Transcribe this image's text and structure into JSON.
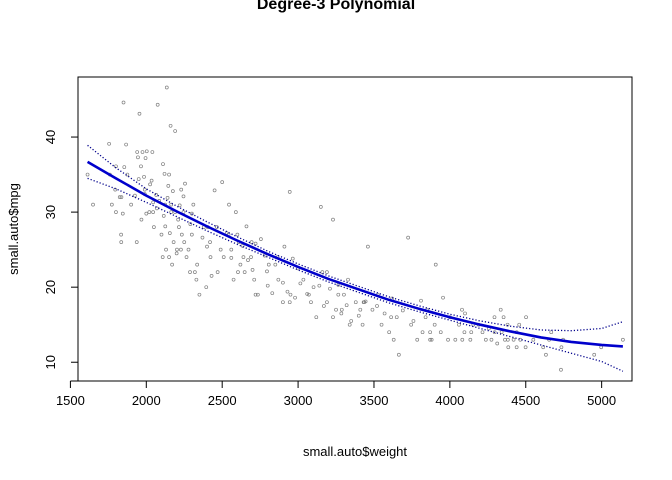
{
  "chart_data": {
    "type": "scatter",
    "title": "Degree-3 Polynomial",
    "xlabel": "small.auto$weight",
    "ylabel": "small.auto$mpg",
    "xlim": [
      1550,
      5200
    ],
    "ylim": [
      7.5,
      48
    ],
    "x_ticks": [
      1500,
      2000,
      2500,
      3000,
      3500,
      4000,
      4500,
      5000
    ],
    "y_ticks": [
      10,
      20,
      30,
      40
    ],
    "grid": false,
    "legend": "none",
    "colors": {
      "points": "#808080",
      "fit": "#0000cc",
      "band": "#00008b"
    },
    "fit": {
      "name": "",
      "x": [
        1613,
        1800,
        2000,
        2200,
        2400,
        2600,
        2800,
        3000,
        3200,
        3400,
        3600,
        3800,
        4000,
        4200,
        4400,
        4600,
        4800,
        5000,
        5140
      ],
      "y": [
        36.7,
        34.5,
        32.2,
        30.1,
        28.1,
        26.2,
        24.4,
        22.7,
        21.1,
        19.7,
        18.3,
        17.1,
        16.0,
        15.0,
        14.1,
        13.3,
        12.7,
        12.3,
        12.1
      ]
    },
    "upper_band": {
      "x": [
        1613,
        1800,
        2000,
        2200,
        2400,
        2600,
        2800,
        3000,
        3200,
        3400,
        3600,
        3800,
        4000,
        4200,
        4400,
        4600,
        4800,
        5000,
        5140
      ],
      "y": [
        38.9,
        35.9,
        33.1,
        30.8,
        28.7,
        26.7,
        24.8,
        23.1,
        21.5,
        20.1,
        18.7,
        17.5,
        16.4,
        15.5,
        14.8,
        14.3,
        14.2,
        14.5,
        15.4
      ]
    },
    "lower_band": {
      "x": [
        1613,
        1800,
        2000,
        2200,
        2400,
        2600,
        2800,
        3000,
        3200,
        3400,
        3600,
        3800,
        4000,
        4200,
        4400,
        4600,
        4800,
        5000,
        5140
      ],
      "y": [
        34.5,
        33.1,
        31.3,
        29.4,
        27.5,
        25.7,
        24.0,
        22.3,
        20.7,
        19.3,
        17.9,
        16.7,
        15.6,
        14.5,
        13.4,
        12.3,
        11.2,
        10.1,
        8.8
      ]
    },
    "points": [
      [
        1613,
        35
      ],
      [
        1649,
        31
      ],
      [
        1755,
        39.1
      ],
      [
        1760,
        35
      ],
      [
        1773,
        31
      ],
      [
        1795,
        33
      ],
      [
        1800,
        36.1
      ],
      [
        1825,
        32
      ],
      [
        1834,
        27
      ],
      [
        1835,
        26
      ],
      [
        1836,
        32
      ],
      [
        1845,
        29.8
      ],
      [
        1850,
        44.6
      ],
      [
        1855,
        36
      ],
      [
        1867,
        39
      ],
      [
        1875,
        35
      ],
      [
        1900,
        31
      ],
      [
        1925,
        32.2
      ],
      [
        1937,
        26
      ],
      [
        1940,
        38
      ],
      [
        1945,
        37.3
      ],
      [
        1950,
        34.4
      ],
      [
        1955,
        43.1
      ],
      [
        1965,
        36.1
      ],
      [
        1968,
        29
      ],
      [
        1975,
        38
      ],
      [
        1985,
        34.7
      ],
      [
        1990,
        32.4
      ],
      [
        1995,
        37.2
      ],
      [
        2000,
        29.8
      ],
      [
        2003,
        38.1
      ],
      [
        2020,
        30
      ],
      [
        2025,
        33.7
      ],
      [
        2035,
        34.2
      ],
      [
        2045,
        31.3
      ],
      [
        2050,
        28
      ],
      [
        2065,
        32.3
      ],
      [
        2070,
        30.5
      ],
      [
        2075,
        44.3
      ],
      [
        2085,
        31.5
      ],
      [
        2100,
        27
      ],
      [
        2108,
        24
      ],
      [
        2110,
        36.4
      ],
      [
        2115,
        29.5
      ],
      [
        2120,
        35.1
      ],
      [
        2125,
        28.1
      ],
      [
        2130,
        25
      ],
      [
        2135,
        46.6
      ],
      [
        2140,
        31.9
      ],
      [
        2145,
        33.5
      ],
      [
        2150,
        24
      ],
      [
        2155,
        27.2
      ],
      [
        2160,
        41.5
      ],
      [
        2164,
        31
      ],
      [
        2170,
        23
      ],
      [
        2175,
        32.8
      ],
      [
        2180,
        26
      ],
      [
        2190,
        40.8
      ],
      [
        2200,
        24.5
      ],
      [
        2210,
        29
      ],
      [
        2215,
        28
      ],
      [
        2220,
        30.9
      ],
      [
        2228,
        25
      ],
      [
        2230,
        33
      ],
      [
        2234,
        27
      ],
      [
        2245,
        32.1
      ],
      [
        2250,
        26
      ],
      [
        2255,
        33.8
      ],
      [
        2265,
        24
      ],
      [
        2278,
        25
      ],
      [
        2290,
        28.4
      ],
      [
        2300,
        29.8
      ],
      [
        2310,
        31
      ],
      [
        2320,
        22
      ],
      [
        2330,
        21
      ],
      [
        2335,
        23
      ],
      [
        2350,
        19
      ],
      [
        2370,
        26.6
      ],
      [
        2379,
        28
      ],
      [
        2395,
        20
      ],
      [
        2400,
        25.4
      ],
      [
        2420,
        26
      ],
      [
        2430,
        21.5
      ],
      [
        2450,
        32.9
      ],
      [
        2465,
        28
      ],
      [
        2490,
        25
      ],
      [
        2500,
        34
      ],
      [
        2510,
        24
      ],
      [
        2530,
        27.2
      ],
      [
        2545,
        31
      ],
      [
        2560,
        23.9
      ],
      [
        2575,
        21
      ],
      [
        2590,
        30
      ],
      [
        2600,
        27
      ],
      [
        2610,
        26
      ],
      [
        2620,
        23
      ],
      [
        2635,
        25.5
      ],
      [
        2648,
        22
      ],
      [
        2660,
        28.1
      ],
      [
        2670,
        23.6
      ],
      [
        2690,
        24
      ],
      [
        2700,
        22.3
      ],
      [
        2720,
        25.8
      ],
      [
        2735,
        19
      ],
      [
        2755,
        26.4
      ],
      [
        2780,
        24.2
      ],
      [
        2795,
        22.1
      ],
      [
        2800,
        20.2
      ],
      [
        2830,
        19.2
      ],
      [
        2850,
        23
      ],
      [
        2870,
        21
      ],
      [
        2900,
        20.6
      ],
      [
        2910,
        25.4
      ],
      [
        2930,
        19.4
      ],
      [
        2945,
        32.7
      ],
      [
        2965,
        23.8
      ],
      [
        2980,
        18.6
      ],
      [
        3000,
        22.5
      ],
      [
        3015,
        20.5
      ],
      [
        3035,
        21
      ],
      [
        3060,
        19.1
      ],
      [
        3085,
        18
      ],
      [
        3102,
        20
      ],
      [
        3120,
        16
      ],
      [
        3140,
        20.2
      ],
      [
        3150,
        30.7
      ],
      [
        3170,
        17.5
      ],
      [
        3190,
        22
      ],
      [
        3210,
        19.8
      ],
      [
        3230,
        29
      ],
      [
        3250,
        17
      ],
      [
        3265,
        20.3
      ],
      [
        3285,
        16.5
      ],
      [
        3302,
        19
      ],
      [
        3320,
        17.6
      ],
      [
        3350,
        15.5
      ],
      [
        3380,
        18
      ],
      [
        3400,
        16.2
      ],
      [
        3425,
        15
      ],
      [
        3445,
        18.1
      ],
      [
        3460,
        25.4
      ],
      [
        3490,
        17
      ],
      [
        3520,
        17.5
      ],
      [
        3550,
        15
      ],
      [
        3570,
        16.5
      ],
      [
        3600,
        14
      ],
      [
        3620,
        18.5
      ],
      [
        3630,
        13
      ],
      [
        3650,
        16
      ],
      [
        3664,
        11
      ],
      [
        3690,
        16.9
      ],
      [
        3725,
        26.6
      ],
      [
        3745,
        15
      ],
      [
        3760,
        15.5
      ],
      [
        3785,
        13
      ],
      [
        3810,
        18.2
      ],
      [
        3820,
        14
      ],
      [
        3840,
        16
      ],
      [
        3850,
        17
      ],
      [
        3870,
        13
      ],
      [
        3900,
        15
      ],
      [
        3907,
        23
      ],
      [
        3940,
        14
      ],
      [
        3955,
        18.6
      ],
      [
        3988,
        13
      ],
      [
        4000,
        16
      ],
      [
        4036,
        13
      ],
      [
        4060,
        15
      ],
      [
        4082,
        13
      ],
      [
        4096,
        14
      ],
      [
        4100,
        16.5
      ],
      [
        4135,
        13
      ],
      [
        4141,
        14
      ],
      [
        4154,
        15
      ],
      [
        4190,
        15
      ],
      [
        4215,
        14
      ],
      [
        4237,
        13
      ],
      [
        4257,
        14.5
      ],
      [
        4274,
        13
      ],
      [
        4295,
        14
      ],
      [
        4312,
        12.5
      ],
      [
        4335,
        17
      ],
      [
        4341,
        14
      ],
      [
        4354,
        16
      ],
      [
        4382,
        13
      ],
      [
        4420,
        13
      ],
      [
        4440,
        12
      ],
      [
        4457,
        15
      ],
      [
        4464,
        13
      ],
      [
        4499,
        12
      ],
      [
        4502,
        16
      ],
      [
        4550,
        13
      ],
      [
        4615,
        12
      ],
      [
        4633,
        11
      ],
      [
        4654,
        13
      ],
      [
        4668,
        14
      ],
      [
        4732,
        9
      ],
      [
        4735,
        12
      ],
      [
        4746,
        13
      ],
      [
        4951,
        11
      ],
      [
        4997,
        12
      ],
      [
        5140,
        13
      ],
      [
        2040,
        38
      ],
      [
        2164,
        30
      ],
      [
        2190,
        30
      ],
      [
        2405,
        28
      ],
      [
        2560,
        25
      ],
      [
        2865,
        24
      ],
      [
        3071,
        19
      ],
      [
        3329,
        21
      ],
      [
        3432,
        18
      ],
      [
        3525,
        19
      ],
      [
        3613,
        16
      ],
      [
        3880,
        13
      ],
      [
        2045,
        30
      ],
      [
        2150,
        35
      ],
      [
        2300,
        27
      ],
      [
        2470,
        22
      ],
      [
        2640,
        24
      ],
      [
        2720,
        19
      ],
      [
        2900,
        18
      ],
      [
        3160,
        22
      ],
      [
        3265,
        19
      ],
      [
        3340,
        15
      ],
      [
        3410,
        17
      ],
      [
        3870,
        14
      ],
      [
        1990,
        33
      ],
      [
        2124,
        31
      ],
      [
        2202,
        25
      ],
      [
        2288,
        22
      ],
      [
        2423,
        24
      ],
      [
        2542,
        27
      ],
      [
        2604,
        22
      ],
      [
        2711,
        21
      ],
      [
        2807,
        23
      ],
      [
        2945,
        18
      ],
      [
        3190,
        18
      ],
      [
        3288,
        17
      ],
      [
        1800,
        30
      ],
      [
        2245,
        30
      ],
      [
        2694,
        26
      ],
      [
        2950,
        19
      ],
      [
        3230,
        16
      ],
      [
        3436,
        18
      ],
      [
        4080,
        17
      ],
      [
        4294,
        16
      ],
      [
        4380,
        15
      ],
      [
        4440,
        14
      ],
      [
        4363,
        13
      ],
      [
        4385,
        12
      ]
    ]
  }
}
